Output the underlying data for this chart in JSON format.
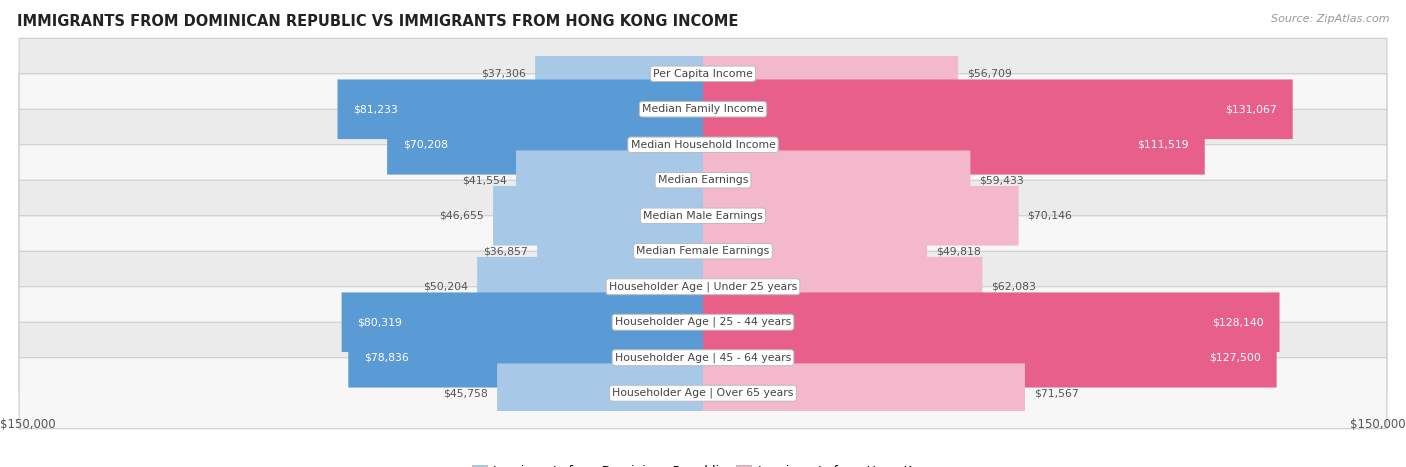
{
  "title": "IMMIGRANTS FROM DOMINICAN REPUBLIC VS IMMIGRANTS FROM HONG KONG INCOME",
  "source": "Source: ZipAtlas.com",
  "categories": [
    "Per Capita Income",
    "Median Family Income",
    "Median Household Income",
    "Median Earnings",
    "Median Male Earnings",
    "Median Female Earnings",
    "Householder Age | Under 25 years",
    "Householder Age | 25 - 44 years",
    "Householder Age | 45 - 64 years",
    "Householder Age | Over 65 years"
  ],
  "dominican": [
    37306,
    81233,
    70208,
    41554,
    46655,
    36857,
    50204,
    80319,
    78836,
    45758
  ],
  "hongkong": [
    56709,
    131067,
    111519,
    59433,
    70146,
    49818,
    62083,
    128140,
    127500,
    71567
  ],
  "max_value": 150000,
  "color_dominican_light": "#a8c8e8",
  "color_dominican_dark": "#5b9bd5",
  "color_hongkong_light": "#f4b8cc",
  "color_hongkong_dark": "#e8608a",
  "dominican_threshold": 60000,
  "hongkong_threshold": 100000,
  "bg_row_odd": "#ebebeb",
  "bg_row_even": "#f7f7f7",
  "legend_label_dominican": "Immigrants from Dominican Republic",
  "legend_label_hongkong": "Immigrants from Hong Kong",
  "figsize": [
    14.06,
    4.67
  ],
  "dpi": 100
}
